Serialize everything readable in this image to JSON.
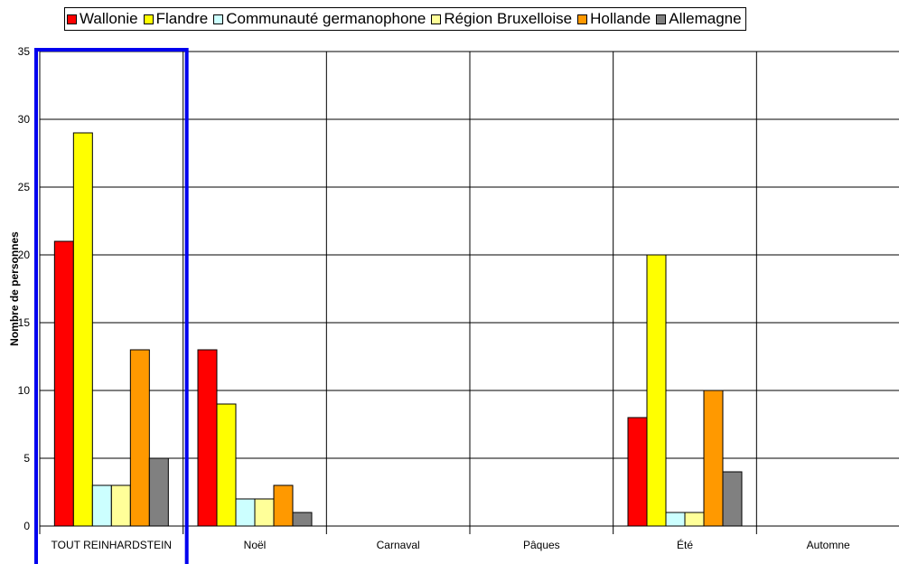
{
  "chart_data": {
    "type": "bar",
    "title": "",
    "xlabel": "",
    "ylabel": "Nombre de personnes",
    "ylim": [
      0,
      35
    ],
    "yticks": [
      0,
      5,
      10,
      15,
      20,
      25,
      30,
      35
    ],
    "grid": true,
    "legend_position": "top",
    "highlight_category": "TOUT REINHARDSTEIN",
    "highlight_color": "#0000ee",
    "categories": [
      "TOUT REINHARDSTEIN",
      "Noël",
      "Carnaval",
      "Pâques",
      "Été",
      "Automne"
    ],
    "series": [
      {
        "name": "Wallonie",
        "color": "#ff0000",
        "values": [
          21,
          13,
          0,
          0,
          8,
          0
        ]
      },
      {
        "name": "Flandre",
        "color": "#ffff00",
        "values": [
          29,
          9,
          0,
          0,
          20,
          0
        ]
      },
      {
        "name": "Communauté germanophone",
        "color": "#ccffff",
        "values": [
          3,
          2,
          0,
          0,
          1,
          0
        ]
      },
      {
        "name": "Région Bruxelloise",
        "color": "#ffff99",
        "values": [
          3,
          2,
          0,
          0,
          1,
          0
        ]
      },
      {
        "name": "Hollande",
        "color": "#ff9900",
        "values": [
          13,
          3,
          0,
          0,
          10,
          0
        ]
      },
      {
        "name": "Allemagne",
        "color": "#808080",
        "values": [
          5,
          1,
          0,
          0,
          4,
          0
        ]
      }
    ]
  }
}
